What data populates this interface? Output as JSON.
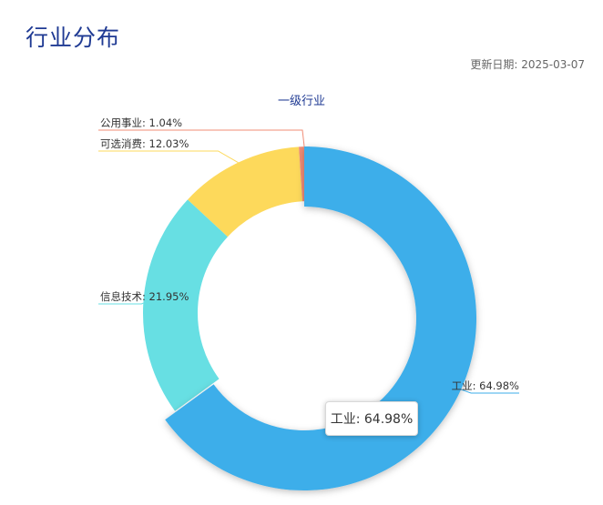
{
  "page": {
    "title": "行业分布",
    "update_date_label": "更新日期:",
    "update_date_value": "2025-03-07"
  },
  "chart_data": {
    "type": "pie",
    "variant": "donut",
    "title": "一级行业",
    "slices": [
      {
        "name": "工业",
        "value": 64.98,
        "label": "工业: 64.98%",
        "color": "#3eaeea"
      },
      {
        "name": "信息技术",
        "value": 21.95,
        "label": "信息技术: 21.95%",
        "color": "#67dfe3"
      },
      {
        "name": "可选消费",
        "value": 12.03,
        "label": "可选消费: 12.03%",
        "color": "#fdd95b"
      },
      {
        "name": "公用事业",
        "value": 1.04,
        "label": "公用事业: 1.04%",
        "color": "#f08c76"
      }
    ],
    "tooltip": "工业: 64.98%"
  }
}
